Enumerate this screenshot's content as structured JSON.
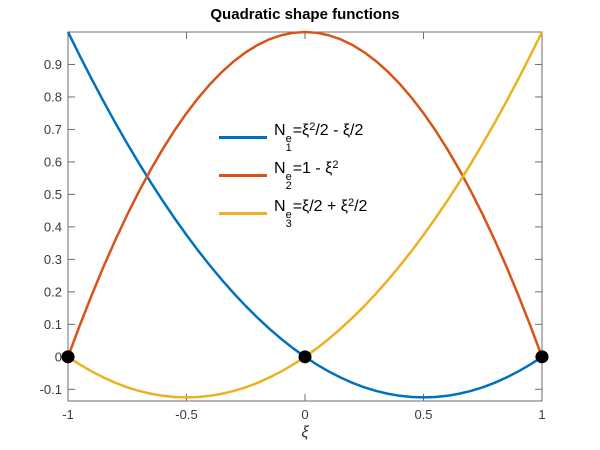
{
  "figure": {
    "title": "Quadratic shape functions",
    "xlabel": "ξ",
    "background": "#ffffff"
  },
  "legend": {
    "items": [
      {
        "base": "N",
        "sup": "e",
        "sub": "1",
        "formula_parts": [
          {
            "text": "=ξ",
            "sup": false
          },
          {
            "text": "2",
            "sup": true
          },
          {
            "text": "/2 - ξ/2",
            "sup": false
          }
        ],
        "color": "#0072BD"
      },
      {
        "base": "N",
        "sup": "e",
        "sub": "2",
        "formula_parts": [
          {
            "text": "=1 - ξ",
            "sup": false
          },
          {
            "text": "2",
            "sup": true
          }
        ],
        "color": "#D95319"
      },
      {
        "base": "N",
        "sup": "e",
        "sub": "3",
        "formula_parts": [
          {
            "text": "=ξ/2 + ξ",
            "sup": false
          },
          {
            "text": "2",
            "sup": true
          },
          {
            "text": "/2",
            "sup": false
          }
        ],
        "color": "#EDB120"
      }
    ]
  },
  "chart_data": {
    "type": "line",
    "title": "Quadratic shape functions",
    "xlabel": "ξ",
    "ylabel": "",
    "xlim": [
      -1,
      1
    ],
    "ylim": [
      -0.136,
      1.0
    ],
    "grid": false,
    "legend_position": "inside-upper-center",
    "axis_color": "#6e6e6e",
    "tick_label_color": "#3a3a3a",
    "xticks": [
      -1,
      -0.5,
      0,
      0.5,
      1
    ],
    "xtick_labels": [
      "-1",
      "-0.5",
      "0",
      "0.5",
      "1"
    ],
    "yticks": [
      -0.1,
      0,
      0.1,
      0.2,
      0.3,
      0.4,
      0.5,
      0.6,
      0.7,
      0.8,
      0.9
    ],
    "ytick_labels": [
      "-0.1",
      "0",
      "0.1",
      "0.2",
      "0.3",
      "0.4",
      "0.5",
      "0.6",
      "0.7",
      "0.8",
      "0.9"
    ],
    "x": [
      -1,
      -0.95,
      -0.9,
      -0.85,
      -0.8,
      -0.75,
      -0.7,
      -0.65,
      -0.6,
      -0.55,
      -0.5,
      -0.45,
      -0.4,
      -0.35,
      -0.3,
      -0.25,
      -0.2,
      -0.15,
      -0.1,
      -0.05,
      0,
      0.05,
      0.1,
      0.15,
      0.2,
      0.25,
      0.3,
      0.35,
      0.4,
      0.45,
      0.5,
      0.55,
      0.6,
      0.65,
      0.7,
      0.75,
      0.8,
      0.85,
      0.9,
      0.95,
      1
    ],
    "series": [
      {
        "name": "N_1^e = ξ²/2 - ξ/2",
        "color": "#0072BD",
        "values": [
          1,
          0.92625,
          0.855,
          0.78625,
          0.72,
          0.65625,
          0.595,
          0.53625,
          0.48,
          0.42625,
          0.375,
          0.32625,
          0.28,
          0.23625,
          0.195,
          0.15625,
          0.12,
          0.08625,
          0.055,
          0.02625,
          0,
          -0.02375,
          -0.045,
          -0.06375,
          -0.08,
          -0.09375,
          -0.105,
          -0.11375,
          -0.12,
          -0.12375,
          -0.125,
          -0.12375,
          -0.12,
          -0.11375,
          -0.105,
          -0.09375,
          -0.08,
          -0.06375,
          -0.045,
          -0.02375,
          0
        ]
      },
      {
        "name": "N_2^e = 1 - ξ²",
        "color": "#D95319",
        "values": [
          0,
          0.0975,
          0.19,
          0.2775,
          0.36,
          0.4375,
          0.51,
          0.5775,
          0.64,
          0.6975,
          0.75,
          0.7975,
          0.84,
          0.8775,
          0.91,
          0.9375,
          0.96,
          0.9775,
          0.99,
          0.9975,
          1,
          0.9975,
          0.99,
          0.9775,
          0.96,
          0.9375,
          0.91,
          0.8775,
          0.84,
          0.7975,
          0.75,
          0.6975,
          0.64,
          0.5775,
          0.51,
          0.4375,
          0.36,
          0.2775,
          0.19,
          0.0975,
          0
        ]
      },
      {
        "name": "N_3^e = ξ/2 + ξ²/2",
        "color": "#EDB120",
        "values": [
          0,
          -0.02375,
          -0.045,
          -0.06375,
          -0.08,
          -0.09375,
          -0.105,
          -0.11375,
          -0.12,
          -0.12375,
          -0.125,
          -0.12375,
          -0.12,
          -0.11375,
          -0.105,
          -0.09375,
          -0.08,
          -0.06375,
          -0.045,
          -0.02375,
          0,
          0.02625,
          0.055,
          0.08625,
          0.12,
          0.15625,
          0.195,
          0.23625,
          0.28,
          0.32625,
          0.375,
          0.42625,
          0.48,
          0.53625,
          0.595,
          0.65625,
          0.72,
          0.78625,
          0.855,
          0.92625,
          1
        ]
      }
    ],
    "node_markers": {
      "color": "#000000",
      "points": [
        [
          -1,
          0
        ],
        [
          0,
          0
        ],
        [
          1,
          0
        ]
      ],
      "radius": 6.5
    }
  }
}
